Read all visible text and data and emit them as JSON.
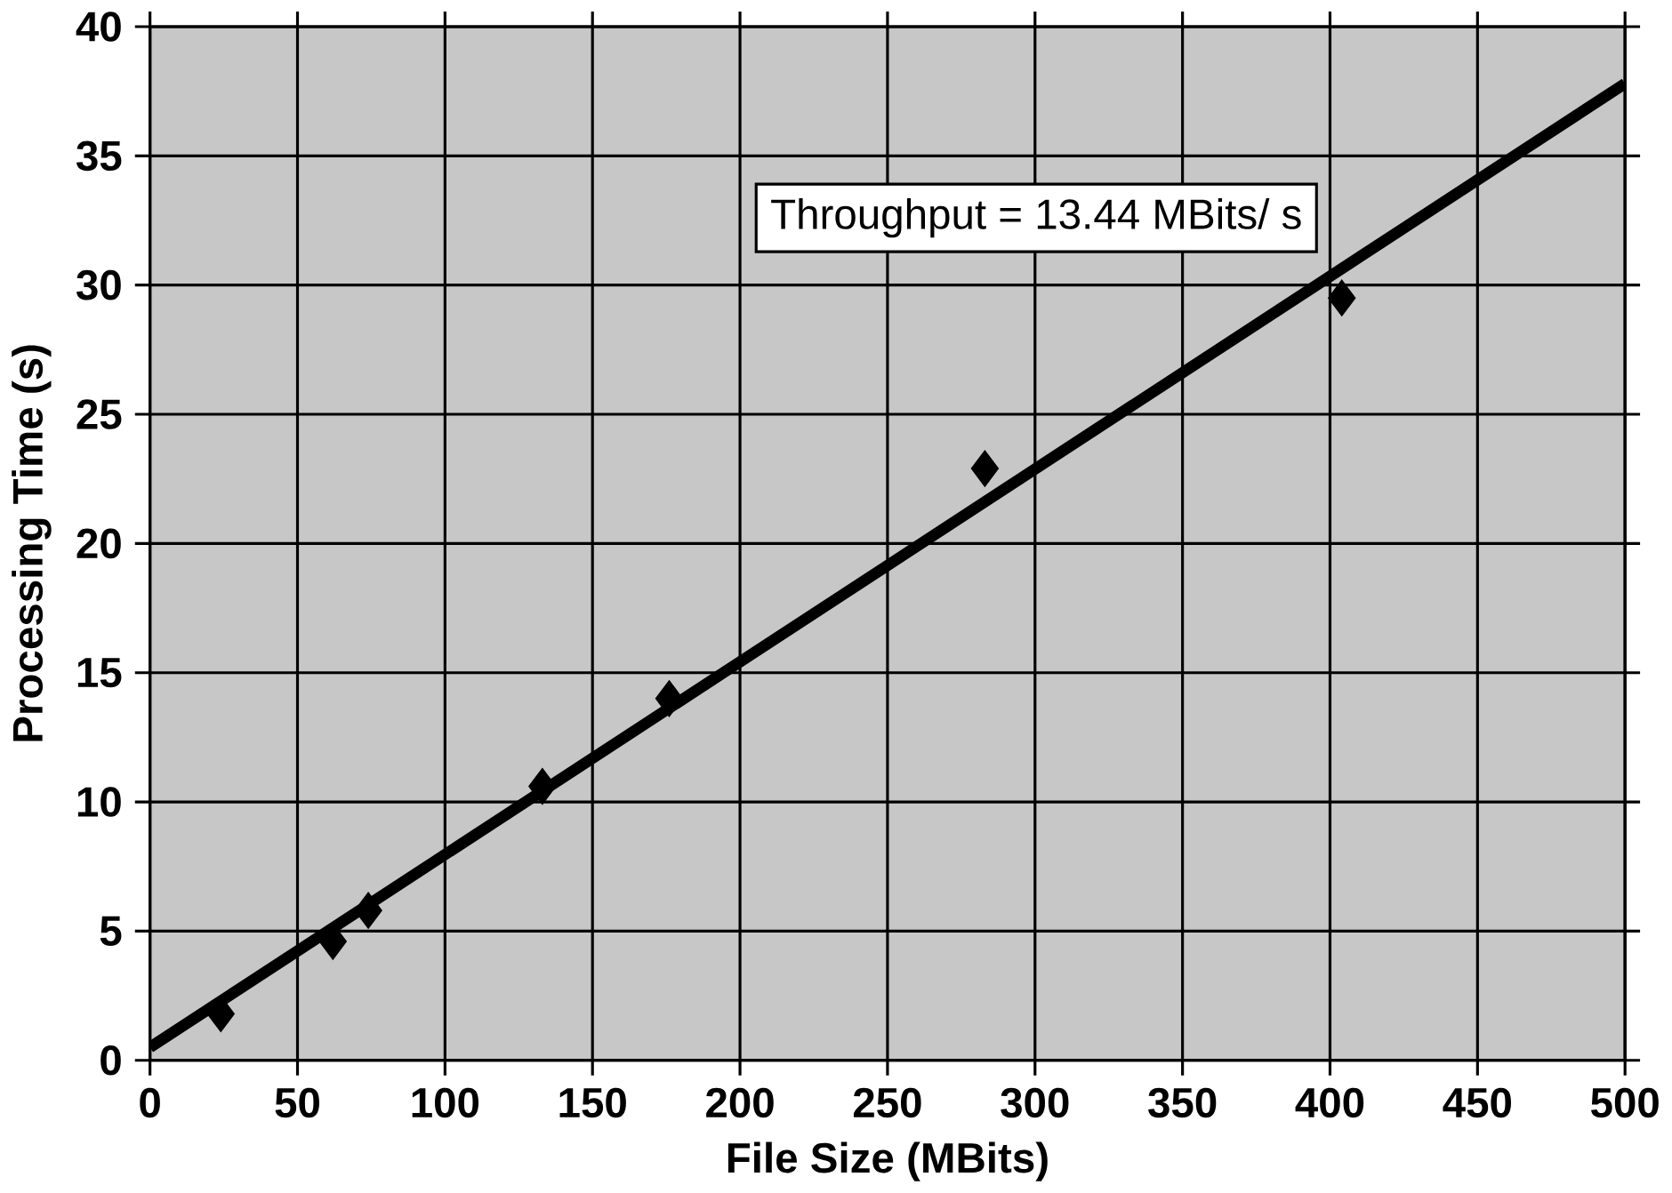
{
  "chart_data": {
    "type": "scatter",
    "xlabel": "File Size (MBits)",
    "ylabel": "Processing Time (s)",
    "annotations": [
      "Throughput = 13.44 MBits/ s"
    ],
    "xlim": [
      0,
      500
    ],
    "ylim": [
      0,
      40
    ],
    "xticks": [
      0,
      50,
      100,
      150,
      200,
      250,
      300,
      350,
      400,
      450,
      500
    ],
    "yticks": [
      0,
      5,
      10,
      15,
      20,
      25,
      30,
      35,
      40
    ],
    "grid": true,
    "marker": "diamond",
    "series": [
      {
        "color": "#000000",
        "x": [
          24,
          62,
          74,
          133,
          176,
          283,
          404
        ],
        "values": [
          1.8,
          4.6,
          5.8,
          10.6,
          14.0,
          22.9,
          29.5
        ]
      },
      {
        "type": "line",
        "color": "#000000",
        "marker": "none",
        "line_style": "solid",
        "x": [
          0,
          500
        ],
        "values": [
          0.5,
          37.8
        ]
      }
    ]
  }
}
